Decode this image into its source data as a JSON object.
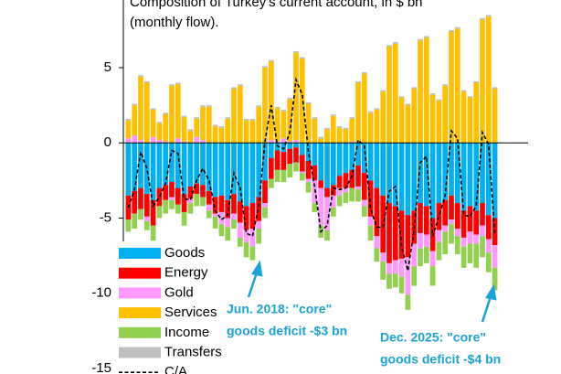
{
  "chart_data": {
    "type": "bar",
    "stacked": true,
    "title": [
      "Composition of Turkey's current account, in $ bn",
      "(monthly flow)."
    ],
    "ylim": [
      -15,
      9.5
    ],
    "yticks": [
      -15,
      -10,
      -5,
      0,
      5
    ],
    "series": [
      {
        "name": "Goods",
        "color": "#00b0f0",
        "values": [
          -3.5,
          -3.2,
          -3.0,
          -3.4,
          -3.8,
          -3.0,
          -2.8,
          -2.6,
          -3.0,
          -3.4,
          -2.9,
          -2.7,
          -2.8,
          -3.2,
          -3.6,
          -3.5,
          -3.8,
          -3.4,
          -3.9,
          -4.2,
          -4.0,
          -3.6,
          -2.5,
          -1.0,
          -0.5,
          -0.6,
          -0.4,
          -0.3,
          -0.8,
          -1.2,
          -1.5,
          -2.5,
          -3.0,
          -2.8,
          -2.2,
          -2.0,
          -1.8,
          -1.5,
          -2.0,
          -2.5,
          -3.0,
          -3.5,
          -4.0,
          -4.2,
          -4.5,
          -4.8,
          -4.5,
          -4.0,
          -4.2,
          -5.0,
          -4.0,
          -3.8,
          -3.5,
          -4.0,
          -4.5,
          -4.2,
          -4.5,
          -4.0,
          -4.8,
          -5.0
        ]
      },
      {
        "name": "Energy",
        "color": "#ff0000",
        "values": [
          -1.6,
          -1.5,
          -1.4,
          -1.5,
          -1.7,
          -1.2,
          -1.0,
          -1.0,
          -1.1,
          -1.2,
          -0.8,
          -0.7,
          -0.8,
          -0.9,
          -1.1,
          -1.1,
          -1.2,
          -1.3,
          -1.4,
          -1.6,
          -1.7,
          -1.6,
          -1.5,
          -1.4,
          -1.3,
          -1.2,
          -1.0,
          -1.0,
          -1.1,
          -1.2,
          -1.0,
          -0.5,
          -0.6,
          -0.7,
          -0.8,
          -1.0,
          -1.2,
          -1.4,
          -1.8,
          -2.4,
          -3.2,
          -3.8,
          -4.0,
          -3.6,
          -3.2,
          -2.8,
          -2.2,
          -2.0,
          -1.9,
          -2.2,
          -1.8,
          -1.7,
          -1.6,
          -1.7,
          -1.8,
          -1.7,
          -1.6,
          -1.5,
          -1.6,
          -1.8
        ]
      },
      {
        "name": "Gold",
        "color": "#ff99ff",
        "values": [
          0.3,
          0.5,
          0.2,
          -0.3,
          0.4,
          0.2,
          0.1,
          -0.2,
          0.3,
          0.1,
          -0.3,
          0.4,
          0.2,
          -0.4,
          -0.2,
          -0.8,
          -0.6,
          -0.4,
          -1.0,
          -0.8,
          -1.2,
          -0.5,
          -0.3,
          0.2,
          0.1,
          0.3,
          0.1,
          0.2,
          -0.1,
          -0.2,
          -1.5,
          -2.5,
          -2.2,
          -0.8,
          -0.5,
          -0.3,
          0.1,
          -0.2,
          -0.4,
          -0.6,
          -0.8,
          -0.6,
          -0.7,
          -0.9,
          -1.2,
          -2.5,
          -1.5,
          -1.0,
          -0.8,
          -1.0,
          -0.8,
          -0.4,
          -0.3,
          -0.5,
          -0.6,
          -0.8,
          -0.6,
          -0.7,
          -0.9,
          -1.5
        ]
      },
      {
        "name": "Services",
        "color": "#ffc000",
        "values": [
          1.2,
          2.0,
          4.2,
          4.0,
          1.8,
          1.1,
          1.8,
          3.8,
          3.6,
          1.6,
          0.8,
          1.2,
          2.2,
          2.4,
          1.1,
          1.0,
          1.6,
          3.6,
          3.8,
          1.5,
          1.5,
          2.4,
          5.0,
          5.2,
          2.2,
          1.8,
          2.8,
          5.8,
          5.6,
          2.6,
          1.6,
          0.3,
          0.9,
          1.8,
          1.0,
          0.9,
          1.5,
          4.0,
          4.6,
          2.0,
          2.2,
          3.4,
          6.4,
          6.6,
          3.0,
          2.5,
          3.6,
          6.8,
          7.0,
          3.2,
          2.8,
          3.8,
          7.4,
          7.6,
          3.4,
          3.0,
          4.0,
          8.2,
          8.4,
          3.6
        ]
      },
      {
        "name": "Income",
        "color": "#92d050",
        "values": [
          -0.8,
          -1.0,
          -0.7,
          -0.6,
          -1.0,
          -0.8,
          -0.9,
          -0.6,
          -0.6,
          -0.9,
          -0.7,
          -0.8,
          -0.6,
          -0.5,
          -0.8,
          -0.8,
          -0.9,
          -0.6,
          -0.6,
          -1.0,
          -0.9,
          -1.0,
          -0.7,
          -0.6,
          -0.8,
          -0.8,
          -0.9,
          -0.6,
          -0.5,
          -0.7,
          -0.6,
          -0.8,
          -0.7,
          -0.6,
          -0.7,
          -0.7,
          -0.9,
          -0.8,
          -0.7,
          -1.0,
          -0.9,
          -1.2,
          -1.0,
          -0.9,
          -1.1,
          -1.0,
          -1.3,
          -1.2,
          -1.1,
          -1.3,
          -1.2,
          -1.5,
          -1.3,
          -1.2,
          -1.4,
          -1.3,
          -1.6,
          -1.4,
          -1.3,
          -1.5
        ]
      },
      {
        "name": "Transfers",
        "color": "#bfbfbf",
        "values": [
          0.1,
          0.1,
          0.1,
          0.1,
          0.1,
          0.1,
          0.1,
          0.1,
          0.1,
          0.1,
          0.1,
          0.1,
          0.1,
          0.1,
          0.1,
          0.1,
          0.1,
          0.1,
          0.1,
          0.1,
          0.1,
          0.1,
          0.1,
          0.1,
          0.1,
          0.1,
          0.1,
          0.1,
          0.1,
          0.1,
          0.1,
          0.1,
          0.1,
          0.1,
          0.1,
          0.1,
          0.1,
          0.1,
          0.1,
          0.1,
          0.1,
          0.1,
          0.1,
          0.1,
          0.1,
          0.1,
          0.1,
          0.1,
          0.1,
          0.1,
          0.1,
          0.1,
          0.1,
          0.1,
          0.1,
          0.1,
          0.1,
          0.1,
          0.1,
          0.1
        ]
      },
      {
        "name": "C/A",
        "type": "line",
        "color": "#000000",
        "values": [
          -4.3,
          -3.1,
          -0.6,
          -1.7,
          -4.2,
          -3.6,
          -2.7,
          -0.5,
          -0.7,
          -3.7,
          -3.8,
          -2.5,
          -1.7,
          -2.5,
          -4.5,
          -5.1,
          -4.8,
          -2.0,
          -3.0,
          -6.0,
          -6.2,
          -4.2,
          0.1,
          2.5,
          -0.2,
          -0.4,
          0.7,
          4.2,
          3.2,
          -0.6,
          -2.9,
          -5.9,
          -5.5,
          -3.0,
          -3.1,
          -3.0,
          -2.2,
          0.2,
          -0.2,
          -4.4,
          -5.6,
          -5.6,
          -3.2,
          -2.9,
          -6.9,
          -8.5,
          -5.8,
          -1.3,
          -0.9,
          -6.2,
          -4.9,
          -3.5,
          0.8,
          0.3,
          -4.8,
          -4.9,
          -4.2,
          0.7,
          -0.1,
          -6.1
        ]
      }
    ],
    "annotations": [
      {
        "lines": [
          "Jun. 2018: \"core\"",
          "goods deficit -$3 bn"
        ]
      },
      {
        "lines": [
          "Dec. 2025: \"core\"",
          "goods deficit -$4 bn"
        ]
      }
    ]
  }
}
